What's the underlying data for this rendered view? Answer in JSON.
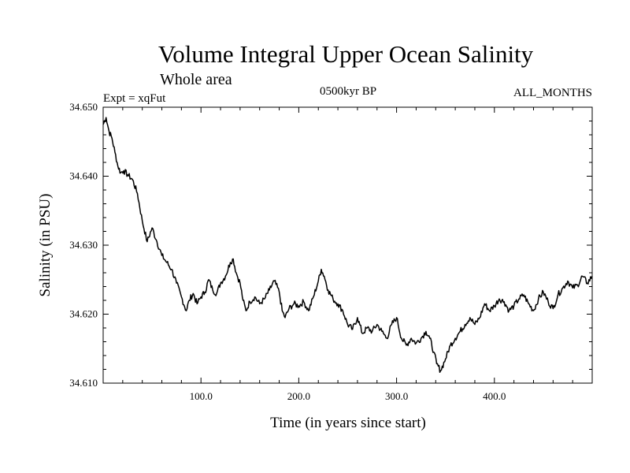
{
  "chart_data": {
    "type": "line",
    "title": "Volume Integral Upper Ocean Salinity",
    "subtitle": "Whole area",
    "experiment_label": "Expt = xqFut",
    "period_label": "0500kyr BP",
    "months_label": "ALL_MONTHS",
    "xlabel": "Time (in years since start)",
    "ylabel": "Salinity (in PSU)",
    "xlim": [
      0,
      500
    ],
    "ylim": [
      34.61,
      34.65
    ],
    "x_ticks": [
      100,
      200,
      300,
      400
    ],
    "x_tick_labels": [
      "100.0",
      "200.0",
      "300.0",
      "400.0"
    ],
    "y_ticks": [
      34.61,
      34.62,
      34.63,
      34.64,
      34.65
    ],
    "y_tick_labels": [
      "34.610",
      "34.620",
      "34.630",
      "34.640",
      "34.650"
    ],
    "grid": false,
    "series": [
      {
        "name": "salinity",
        "color": "#000000",
        "x": [
          0,
          3,
          6,
          9,
          12,
          15,
          18,
          21,
          25,
          30,
          35,
          40,
          45,
          50,
          55,
          60,
          65,
          70,
          75,
          80,
          85,
          88,
          92,
          96,
          100,
          104,
          108,
          112,
          116,
          120,
          125,
          130,
          133,
          136,
          140,
          143,
          146,
          150,
          155,
          160,
          165,
          170,
          175,
          180,
          183,
          186,
          190,
          195,
          200,
          205,
          210,
          215,
          220,
          223,
          226,
          230,
          235,
          240,
          245,
          250,
          255,
          260,
          265,
          270,
          275,
          280,
          285,
          290,
          295,
          300,
          305,
          310,
          315,
          320,
          325,
          330,
          334,
          338,
          341,
          345,
          350,
          355,
          360,
          365,
          370,
          375,
          380,
          385,
          390,
          395,
          400,
          405,
          410,
          415,
          420,
          425,
          430,
          435,
          440,
          445,
          450,
          455,
          460,
          465,
          470,
          475,
          480,
          485,
          490,
          495,
          500
        ],
        "values": [
          34.6475,
          34.6485,
          34.6465,
          34.6455,
          34.6435,
          34.6415,
          34.6405,
          34.6408,
          34.6402,
          34.6395,
          34.6375,
          34.6335,
          34.6305,
          34.6325,
          34.6305,
          34.6285,
          34.6275,
          34.6265,
          34.6245,
          34.6225,
          34.6205,
          34.622,
          34.623,
          34.6215,
          34.6225,
          34.6232,
          34.625,
          34.6235,
          34.623,
          34.6245,
          34.6255,
          34.6275,
          34.628,
          34.626,
          34.6245,
          34.622,
          34.6205,
          34.6218,
          34.6225,
          34.6215,
          34.6222,
          34.6235,
          34.6248,
          34.6232,
          34.6205,
          34.6195,
          34.6208,
          34.6215,
          34.6212,
          34.6218,
          34.6205,
          34.6225,
          34.6248,
          34.6265,
          34.6255,
          34.6235,
          34.6222,
          34.6215,
          34.6205,
          34.6185,
          34.6178,
          34.6195,
          34.6172,
          34.618,
          34.6175,
          34.6185,
          34.6175,
          34.6165,
          34.6185,
          34.6195,
          34.6165,
          34.6155,
          34.6165,
          34.6158,
          34.6165,
          34.6175,
          34.6165,
          34.6145,
          34.6128,
          34.6118,
          34.6135,
          34.6155,
          34.6165,
          34.6175,
          34.6185,
          34.6195,
          34.6185,
          34.6195,
          34.6215,
          34.6205,
          34.6212,
          34.6222,
          34.6218,
          34.6205,
          34.6212,
          34.6222,
          34.6228,
          34.6215,
          34.6205,
          34.6222,
          34.6232,
          34.6218,
          34.6208,
          34.6228,
          34.6238,
          34.6248,
          34.6238,
          34.6242,
          34.6255,
          34.6245,
          34.6255
        ]
      }
    ]
  }
}
